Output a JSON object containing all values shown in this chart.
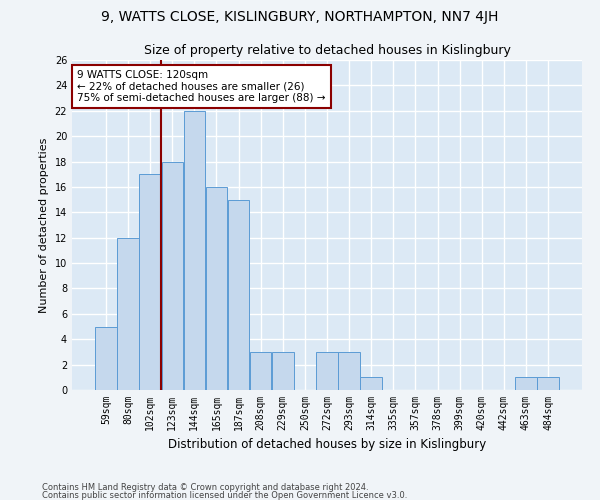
{
  "title": "9, WATTS CLOSE, KISLINGBURY, NORTHAMPTON, NN7 4JH",
  "subtitle": "Size of property relative to detached houses in Kislingbury",
  "xlabel": "Distribution of detached houses by size in Kislingbury",
  "ylabel": "Number of detached properties",
  "categories": [
    "59sqm",
    "80sqm",
    "102sqm",
    "123sqm",
    "144sqm",
    "165sqm",
    "187sqm",
    "208sqm",
    "229sqm",
    "250sqm",
    "272sqm",
    "293sqm",
    "314sqm",
    "335sqm",
    "357sqm",
    "378sqm",
    "399sqm",
    "420sqm",
    "442sqm",
    "463sqm",
    "484sqm"
  ],
  "values": [
    5,
    12,
    17,
    18,
    22,
    16,
    15,
    3,
    3,
    0,
    3,
    3,
    1,
    0,
    0,
    0,
    0,
    0,
    0,
    1,
    1
  ],
  "bar_color": "#c5d8ed",
  "bar_edge_color": "#5b9bd5",
  "ylim": [
    0,
    26
  ],
  "yticks": [
    0,
    2,
    4,
    6,
    8,
    10,
    12,
    14,
    16,
    18,
    20,
    22,
    24,
    26
  ],
  "vline_color": "#8b0000",
  "annotation_text": "9 WATTS CLOSE: 120sqm\n← 22% of detached houses are smaller (26)\n75% of semi-detached houses are larger (88) →",
  "annotation_box_color": "#ffffff",
  "annotation_box_edge": "#8b0000",
  "footer1": "Contains HM Land Registry data © Crown copyright and database right 2024.",
  "footer2": "Contains public sector information licensed under the Open Government Licence v3.0.",
  "title_fontsize": 10,
  "subtitle_fontsize": 9,
  "ylabel_fontsize": 8,
  "xlabel_fontsize": 8.5,
  "tick_fontsize": 7,
  "annot_fontsize": 7.5,
  "footer_fontsize": 6,
  "bg_color": "#dce9f5",
  "fig_color": "#f0f4f8",
  "grid_color": "#ffffff",
  "vline_x_index": 2.5
}
